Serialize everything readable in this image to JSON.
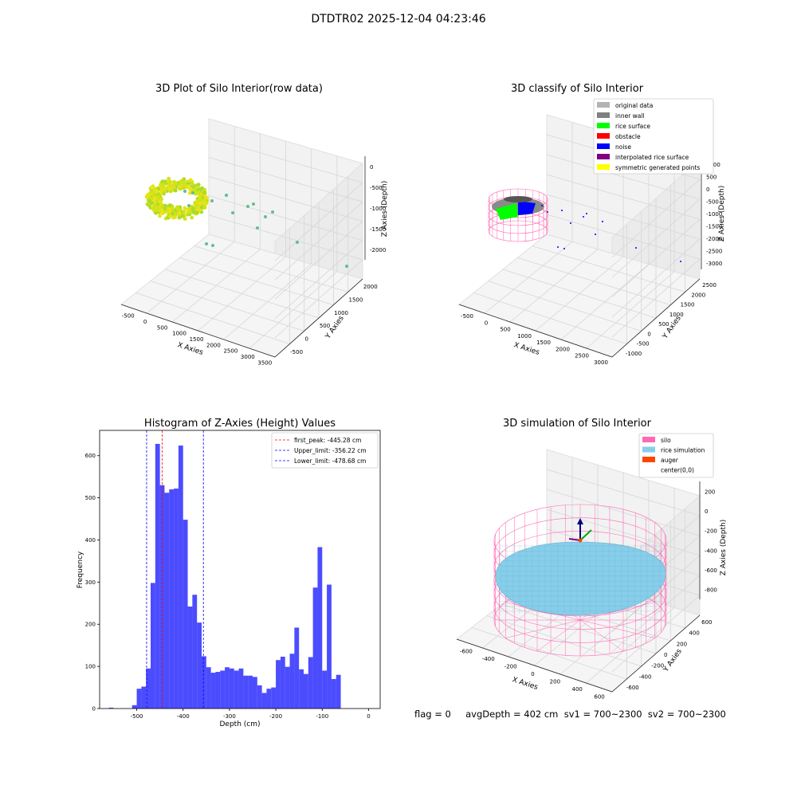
{
  "figure": {
    "title": "DTDTR02 2025-12-04 04:23:46"
  },
  "panels": {
    "raw": {
      "title": "3D Plot of Silo Interior(row data)",
      "xlabel": "X Axies",
      "ylabel": "Y Axies",
      "zlabel": "Z Axies (Depth)",
      "xticks": [
        "-500",
        "0",
        "500",
        "1000",
        "1500",
        "2000",
        "2500",
        "3000",
        "3500"
      ],
      "yticks": [
        "-500",
        "0",
        "500",
        "1000",
        "1500",
        "2000"
      ],
      "zticks": [
        "0",
        "-500",
        "-1000",
        "-1500",
        "-2000"
      ]
    },
    "classify": {
      "title": "3D classify of Silo Interior",
      "xlabel": "X Axies",
      "ylabel": "Y Axies",
      "zlabel": "Z Axies (Depth)",
      "xticks": [
        "-500",
        "0",
        "500",
        "1000",
        "1500",
        "2000",
        "2500",
        "3000"
      ],
      "yticks": [
        "-1000",
        "-500",
        "0",
        "500",
        "1000",
        "1500",
        "2000",
        "2500"
      ],
      "zticks": [
        "1000",
        "500",
        "0",
        "-500",
        "-1000",
        "-1500",
        "-2000",
        "-2500",
        "-3000"
      ],
      "legend": [
        {
          "label": "original data",
          "color": "#b3b3b3"
        },
        {
          "label": "inner wall",
          "color": "#808080"
        },
        {
          "label": "rice surface",
          "color": "#00ff00"
        },
        {
          "label": "obstacle",
          "color": "#ff0000"
        },
        {
          "label": "noise",
          "color": "#0000ff"
        },
        {
          "label": "interpolated rice surface",
          "color": "#800080"
        },
        {
          "label": "symmetric generated points",
          "color": "#ffff00"
        }
      ]
    },
    "simulation": {
      "title": "3D simulation of Silo Interior",
      "xlabel": "X Axies",
      "ylabel": "Y Axies",
      "zlabel": "Z Axies (Depth)",
      "xticks": [
        "-600",
        "-400",
        "-200",
        "0",
        "200",
        "400",
        "600"
      ],
      "yticks": [
        "-600",
        "-400",
        "-200",
        "0",
        "200",
        "400",
        "600"
      ],
      "zticks": [
        "200",
        "0",
        "-200",
        "-400",
        "-600",
        "-800"
      ],
      "legend": [
        {
          "label": "silo",
          "color": "#ff69b4"
        },
        {
          "label": "rice simulation",
          "color": "#87ceeb"
        },
        {
          "label": "auger",
          "color": "#ff4500"
        },
        {
          "label": "center(0,0)",
          "color": ""
        }
      ]
    }
  },
  "chart_data": {
    "type": "bar",
    "title": "Histogram of Z-Axies (Height) Values",
    "xlabel": "Depth (cm)",
    "ylabel": "Frequency",
    "xlim": [
      -580,
      25
    ],
    "ylim": [
      0,
      660
    ],
    "xticks": [
      -500,
      -400,
      -300,
      -200,
      -100,
      0
    ],
    "yticks": [
      0,
      100,
      200,
      300,
      400,
      500,
      600
    ],
    "bar_color": "#0000ff",
    "bin_start": -560,
    "bin_width": 10,
    "values": [
      2,
      0,
      0,
      0,
      0,
      8,
      47,
      52,
      95,
      298,
      628,
      530,
      512,
      520,
      522,
      624,
      448,
      242,
      270,
      204,
      124,
      98,
      85,
      87,
      90,
      98,
      95,
      90,
      95,
      78,
      78,
      75,
      55,
      37,
      47,
      50,
      115,
      123,
      99,
      130,
      192,
      93,
      82,
      122,
      287,
      383,
      90,
      294,
      70,
      80
    ],
    "vlines": [
      {
        "label": "first_peak: -445.28 cm",
        "x": -445.28,
        "color": "#ff0000"
      },
      {
        "label": "Upper_limit: -356.22 cm",
        "x": -356.22,
        "color": "#0000ff"
      },
      {
        "label": "Lower_limit: -478.68 cm",
        "x": -478.68,
        "color": "#0000ff"
      }
    ],
    "legend_position": "top-right"
  },
  "footer": {
    "text": "flag = 0     avgDepth = 402 cm  sv1 = 700~2300  sv2 = 700~2300"
  }
}
